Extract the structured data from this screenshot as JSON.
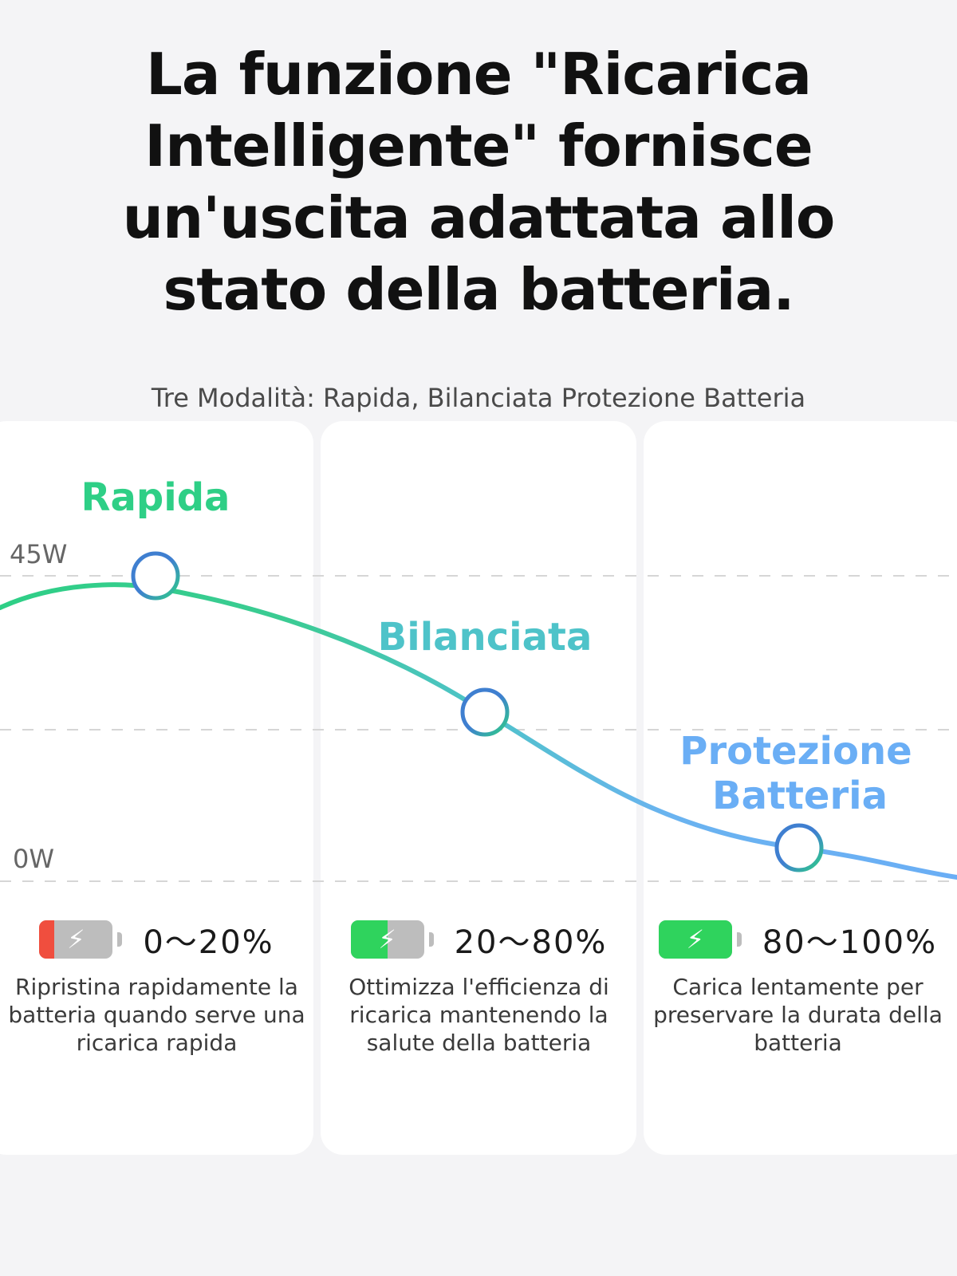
{
  "headline": "La funzione \"Ricarica Intelligente\" fornisce un'uscita adattata allo stato della batteria.",
  "subtitle": "Tre Modalità: Rapida, Bilanciata Protezione Batteria",
  "axis": {
    "top_label": "45W",
    "bottom_label": "0W"
  },
  "modes": [
    {
      "name": "Rapida",
      "color": "#2ecf86",
      "range": "0～20%",
      "battery_fill_pct": 20,
      "battery_fill_color": "#f04e3e",
      "description": "Ripristina rapidamente la batteria quando serve una ricarica rapida"
    },
    {
      "name": "Bilanciata",
      "color": "#4ec3c9",
      "range": "20～80%",
      "battery_fill_pct": 50,
      "battery_fill_color": "#2fd35d",
      "description": "Ottimizza l'efficienza di ricarica mantenendo la salute della batteria"
    },
    {
      "name": "Protezione Batteria",
      "name_lines": [
        "Protezione",
        "Batteria"
      ],
      "color": "#6aaef5",
      "range": "80～100%",
      "battery_fill_pct": 100,
      "battery_fill_color": "#2fd35d",
      "description": "Carica lentamente per preservare la durata della batteria"
    }
  ],
  "icons": {
    "battery": "battery-charging-icon",
    "bolt": "lightning-bolt-icon"
  },
  "colors": {
    "curve_start": "#2ecf86",
    "curve_mid": "#4ec3c9",
    "curve_end": "#6aaef5",
    "marker_ring": "#3f7fd0"
  }
}
